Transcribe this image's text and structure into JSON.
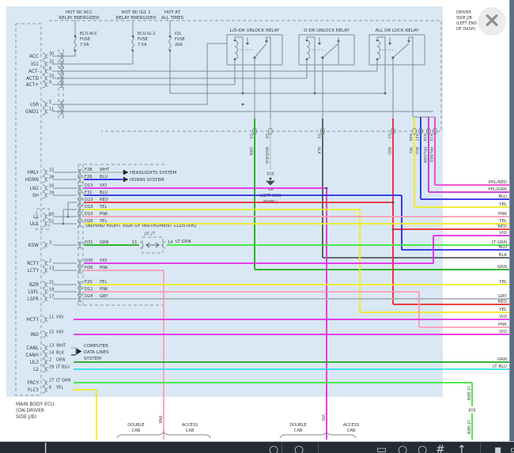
{
  "viewer": {
    "close_glyph": "×"
  },
  "colors": {
    "WHT": "#b6bebe",
    "BLU": "#2428e0",
    "VIO": "#e428e4",
    "RED": "#ee2428",
    "YEL": "#f0ec1c",
    "PNK": "#ff9cb4",
    "GRN": "#1aaa1a",
    "LT GRN": "#38e838",
    "GRY": "#aab2b2",
    "BLK": "#505858",
    "LT BLU": "#2cdfe8",
    "PPL/RED": "#f03cc8",
    "PPL/GRN": "#cc2ccc",
    "WHT/BLK": "#c2caca"
  },
  "power_headers": [
    {
      "l1": "HOT W/ ACC",
      "l2": "RELAY ENERGIZED"
    },
    {
      "l1": "HOT W/ IG1 2",
      "l2": "RELAY ENERGIZED"
    },
    {
      "l1": "HOT AT",
      "l2": "ALL TIMES"
    }
  ],
  "fuses": [
    {
      "name": "ECU-ACC",
      "kind": "FUSE",
      "rating": "7.5A"
    },
    {
      "name": "ECU-IG 2",
      "kind": "FUSE",
      "rating": "7.5A"
    },
    {
      "name": "D/L",
      "kind": "FUSE",
      "rating": "20A"
    }
  ],
  "relays": [
    {
      "label": "L/D-DR UNLOCK RELAY"
    },
    {
      "label": "D-DR UNLOCK RELAY"
    },
    {
      "label": "ALL DR LOCK RELAY"
    }
  ],
  "jb_note": [
    "DRIVER",
    "SIDE J/B",
    "(LEFT END",
    "OF DASH)"
  ],
  "ecu_note": [
    "MAIN BODY ECU",
    "(ON DRIVER",
    "SIDE J/B)"
  ],
  "top_pins": [
    {
      "label": "ACC",
      "pin": "30"
    },
    {
      "label": "IG1",
      "pin": "32"
    },
    {
      "label": "ACT-",
      "pin": "8"
    },
    {
      "label": "ACTD",
      "pin": "10"
    },
    {
      "label": "ACT+",
      "pin": "9"
    },
    {
      "label": "LSR",
      "pin": "5"
    },
    {
      "label": "GND1",
      "pin": "11"
    }
  ],
  "rows": [
    {
      "label": "HRLY",
      "pin": "15",
      "conn": "F28",
      "color": "WHT"
    },
    {
      "label": "HORN",
      "pin": "28",
      "conn": "F26",
      "color": "BLU"
    },
    {
      "label": "LN2",
      "pin": "16",
      "conn": "D13",
      "color": "VIO"
    },
    {
      "label": "SH",
      "pin": "29",
      "conn": "F31",
      "color": "BLU"
    },
    {
      "label": "",
      "pin": "",
      "conn": "D23",
      "color": "RED"
    },
    {
      "label": "",
      "pin": "",
      "conn": "D16",
      "color": "YEL"
    },
    {
      "label": "L1",
      "pin": "20",
      "conn": "D10",
      "color": "PNK"
    },
    {
      "label": "UL1",
      "pin": "22",
      "conn": "D26",
      "color": "YEL"
    },
    {
      "label": "KSW",
      "pin": "3",
      "conn": "D31",
      "color": "GRN"
    },
    {
      "label": "RCTY",
      "pin": "2",
      "conn": "D30",
      "color": "VIO"
    },
    {
      "label": "LCTY",
      "pin": "13",
      "conn": "H36",
      "color": "PNK"
    },
    {
      "label": "BZR",
      "pin": "21",
      "conn": "F29",
      "color": "YEL"
    },
    {
      "label": "LSFL",
      "pin": "19",
      "conn": "D11",
      "color": "PNK"
    },
    {
      "label": "LSFR",
      "pin": "17",
      "conn": "D24",
      "color": "GRY"
    },
    {
      "label": "HCTY",
      "pin": "11",
      "conn": "",
      "color": "VIO"
    },
    {
      "label": "IND",
      "pin": "15",
      "conn": "",
      "color": "VIO"
    },
    {
      "label": "CANL",
      "pin": "13",
      "conn": "",
      "color": "WHT"
    },
    {
      "label": "CANH",
      "pin": "14",
      "conn": "",
      "color": "BLK"
    },
    {
      "label": "UL3",
      "pin": "2",
      "conn": "",
      "color": "GRN"
    },
    {
      "label": "L2",
      "pin": "29",
      "conn": "",
      "color": "LT BLU"
    },
    {
      "label": "FRCY",
      "pin": "27",
      "conn": "",
      "color": "LT GRN"
    },
    {
      "label": "FLCY",
      "pin": "6",
      "conn": "",
      "color": "YEL"
    }
  ],
  "drops": [
    {
      "pin": "D3",
      "color": "GRN"
    },
    {
      "pin": "D5",
      "color": "WHT/BLK"
    },
    {
      "pin": "D2",
      "color": "BLK"
    },
    {
      "pin": "D1",
      "color": "RED"
    },
    {
      "pin": "A44",
      "color": "YEL"
    },
    {
      "pin": "H27",
      "color": "BLU"
    },
    {
      "pin": "H19",
      "color": "PPL/GRN"
    },
    {
      "pin": "H13",
      "color": "PPL/RED"
    }
  ],
  "right_exit_labels": [
    "PPL/RED",
    "PPL/GRN",
    "BLU",
    "YEL",
    "PNK",
    "YEL",
    "RED",
    "VIO",
    "LT GRN",
    "BLU",
    "BLK",
    "GRN",
    "YEL",
    "GRY",
    "RED",
    "YEL",
    "VIO",
    "PNK",
    "VIO",
    "GRN",
    "LT BLU"
  ],
  "notes": {
    "cluster": "(BEHIND RIGHT SIDE OF INSTRUMENT CLUSTER)",
    "jc": "J/C J7",
    "jc_left_pin": "13",
    "jc_right_pin": "14",
    "jc_out_color": "LT GRN",
    "ground_pin": "1A",
    "ground_note": [
      "(LEFT KICK",
      "PANEL)"
    ]
  },
  "systems": {
    "headlights": "HEADLIGHTS SYSTEM",
    "horns": "HORNS SYSTEM",
    "computer": [
      "COMPUTER",
      "DATA LINES",
      "SYSTEM"
    ]
  },
  "cab_groups": [
    {
      "l1": "DOUBLE",
      "l2": "CAB"
    },
    {
      "l1": "ACCESS",
      "l2": "CAB"
    },
    {
      "l1": "DOUBLE",
      "l2": "CAB"
    },
    {
      "l1": "ACCESS",
      "l2": "CAB"
    }
  ],
  "bottom_tags": [
    "PNK",
    "VIO",
    "LT GRN",
    "LT GRN"
  ],
  "toolbar_icons": [
    {
      "name": "notification-marker-icon",
      "glyph": "▏"
    },
    {
      "name": "search-icon",
      "glyph": "○"
    },
    {
      "name": "person-icon",
      "glyph": "○"
    },
    {
      "name": "window-icon",
      "glyph": "▭"
    },
    {
      "name": "circle-tool-icon",
      "glyph": "○"
    },
    {
      "name": "refresh-icon",
      "glyph": "○"
    },
    {
      "name": "hash-icon",
      "glyph": "#"
    },
    {
      "name": "share-icon",
      "glyph": "↑"
    },
    {
      "name": "square-filled-icon",
      "glyph": "▪"
    },
    {
      "name": "square-outline-icon",
      "glyph": "▭"
    }
  ]
}
